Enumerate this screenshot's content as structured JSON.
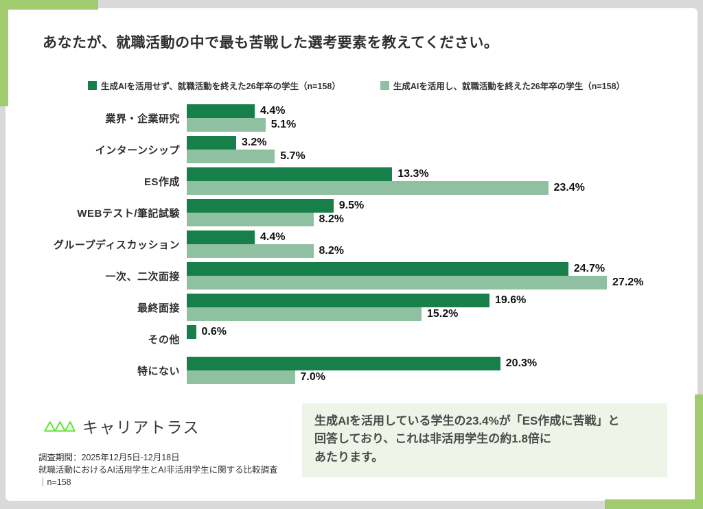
{
  "title": "あなたが、就職活動の中で最も苦戦した選考要素を教えてください。",
  "legend": [
    {
      "label": "生成AIを活用せず、就職活動を終えた26年卒の学生（n=158）",
      "color": "#17804a"
    },
    {
      "label": "生成AIを活用し、就職活動を終えた26年卒の学生（n=158）",
      "color": "#8fc0a1"
    }
  ],
  "chart_data": {
    "type": "bar",
    "orientation": "horizontal",
    "title": "あなたが、就職活動の中で最も苦戦した選考要素を教えてください。",
    "categories": [
      "業界・企業研究",
      "インターンシップ",
      "ES作成",
      "WEBテスト/筆記試験",
      "グループディスカッション",
      "一次、二次面接",
      "最終面接",
      "その他",
      "特にない"
    ],
    "series": [
      {
        "name": "生成AIを活用せず、就職活動を終えた26年卒の学生（n=158）",
        "color": "#17804a",
        "values": [
          4.4,
          3.2,
          13.3,
          9.5,
          4.4,
          24.7,
          19.6,
          0.6,
          20.3
        ]
      },
      {
        "name": "生成AIを活用し、就職活動を終えた26年卒の学生（n=158）",
        "color": "#8fc0a1",
        "values": [
          5.1,
          5.7,
          23.4,
          8.2,
          8.2,
          27.2,
          15.2,
          null,
          7.0
        ]
      }
    ],
    "value_suffix": "%",
    "xlim": [
      0,
      28
    ],
    "grid": false,
    "legend_position": "top"
  },
  "brand": {
    "name": "キャリアトラス",
    "logo_color": "#67e53a"
  },
  "callout": {
    "background": "#eef4e7",
    "lines": [
      "生成AIを活用している学生の23.4%が「ES作成に苦戦」と",
      "回答しており、これは非活用学生の約1.8倍に",
      "あたります。"
    ]
  },
  "notes": {
    "line1": "調査期間：2025年12月5日-12月18日",
    "line2": "就職活動におけるAI活用学生とAI非活用学生に関する比較調査",
    "line3": "｜n=158"
  },
  "colors": {
    "accent_corner": "#a0cc6e",
    "page_background": "#d9d9d9",
    "card_background": "#ffffff"
  }
}
